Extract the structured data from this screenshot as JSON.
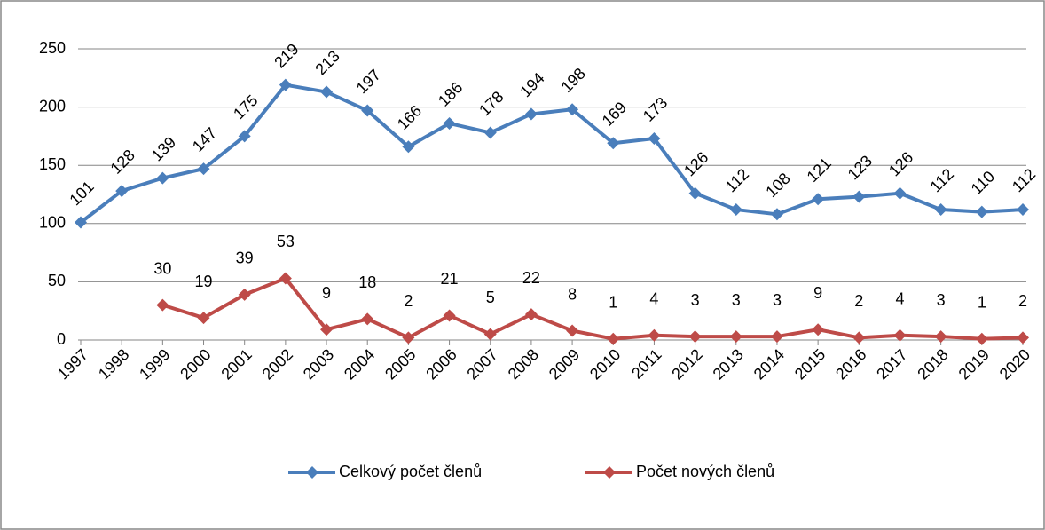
{
  "chart_data": {
    "type": "line",
    "categories": [
      "1997",
      "1998",
      "1999",
      "2000",
      "2001",
      "2002",
      "2003",
      "2004",
      "2005",
      "2006",
      "2007",
      "2008",
      "2009",
      "2010",
      "2011",
      "2012",
      "2013",
      "2014",
      "2015",
      "2016",
      "2017",
      "2018",
      "2019",
      "2020"
    ],
    "series": [
      {
        "name": "Celkový počet členů",
        "color": "#4a7ebb",
        "values": [
          101,
          128,
          139,
          147,
          175,
          219,
          213,
          197,
          166,
          186,
          178,
          194,
          198,
          169,
          173,
          126,
          112,
          108,
          121,
          123,
          126,
          112,
          110,
          112
        ]
      },
      {
        "name": "Počet nových členů",
        "color": "#be4b48",
        "values": [
          null,
          null,
          30,
          19,
          39,
          53,
          9,
          18,
          2,
          21,
          5,
          22,
          8,
          1,
          4,
          3,
          3,
          3,
          9,
          2,
          4,
          3,
          1,
          2
        ]
      }
    ],
    "ylim": [
      0,
      250
    ],
    "yticks": [
      0,
      50,
      100,
      150,
      200,
      250
    ],
    "grid": true,
    "legend": "bottom"
  }
}
